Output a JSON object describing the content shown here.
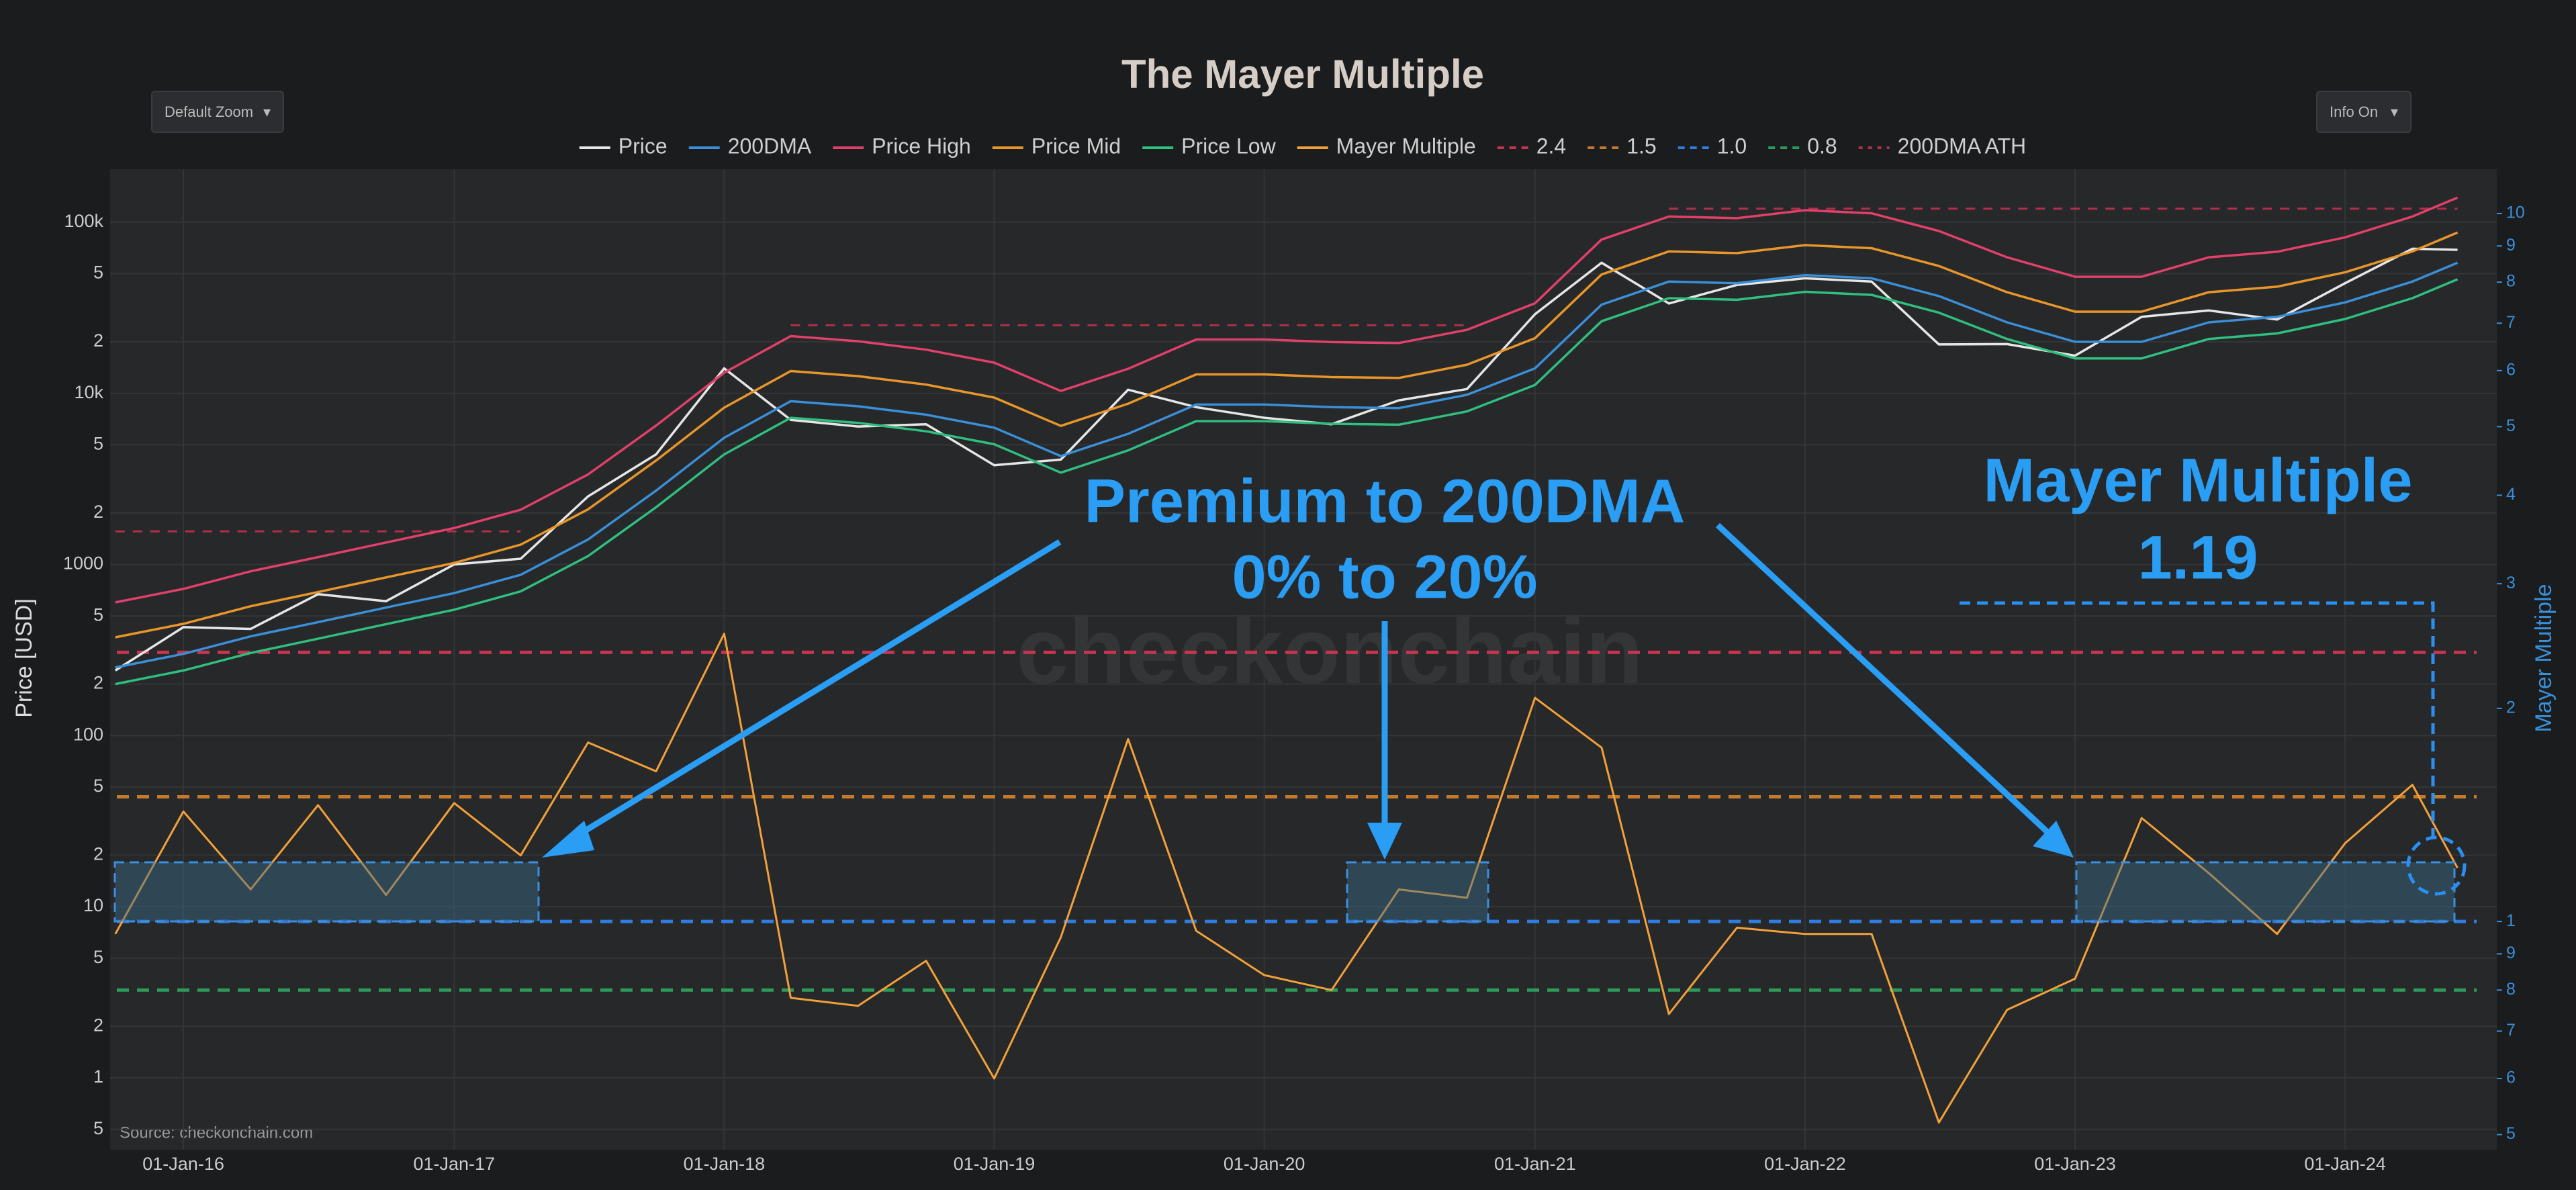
{
  "controls": {
    "zoom": "Default Zoom",
    "info": "Info On"
  },
  "chart_data": {
    "type": "line",
    "title": "The Mayer Multiple",
    "y_label": "Price [USD]",
    "y2_label": "Mayer Multiple",
    "source": "Source: checkonchain.com",
    "watermark": "checkonchain",
    "annotations": [
      "Premium to 200DMA",
      "0% to 20%",
      "Mayer Multiple",
      "1.19"
    ],
    "log_y": true,
    "log_y2": true,
    "grid": true,
    "xlim": [
      "2015-09-24",
      "2024-07-24"
    ],
    "xticks": [
      {
        "value": "2016-01-01",
        "label": "01-Jan-16"
      },
      {
        "value": "2017-01-01",
        "label": "01-Jan-17"
      },
      {
        "value": "2018-01-01",
        "label": "01-Jan-18"
      },
      {
        "value": "2019-01-01",
        "label": "01-Jan-19"
      },
      {
        "value": "2020-01-01",
        "label": "01-Jan-20"
      },
      {
        "value": "2021-01-01",
        "label": "01-Jan-21"
      },
      {
        "value": "2022-01-01",
        "label": "01-Jan-22"
      },
      {
        "value": "2023-01-01",
        "label": "01-Jan-23"
      },
      {
        "value": "2024-01-01",
        "label": "01-Jan-24"
      }
    ],
    "ylim": [
      0.38,
      204000
    ],
    "yticks": [
      {
        "value": 0.5,
        "label": "5"
      },
      1,
      2,
      5,
      10,
      {
        "value": 20,
        "label": "2"
      },
      {
        "value": 50,
        "label": "5"
      },
      100,
      {
        "value": 200,
        "label": "2"
      },
      {
        "value": 500,
        "label": "5"
      },
      1000,
      {
        "value": 2000,
        "label": "2"
      },
      {
        "value": 5000,
        "label": "5"
      },
      {
        "value": 10000,
        "label": "10k"
      },
      {
        "value": 20000,
        "label": "2"
      },
      {
        "value": 50000,
        "label": "5"
      },
      {
        "value": 100000,
        "label": "100k"
      }
    ],
    "y2lim": [
      0.476,
      11.55
    ],
    "y2ticks": [
      {
        "value": 0.5,
        "label": "5"
      },
      {
        "value": 0.6,
        "label": "6"
      },
      {
        "value": 0.7,
        "label": "7"
      },
      {
        "value": 0.8,
        "label": "8"
      },
      {
        "value": 0.9,
        "label": "9"
      },
      1,
      2,
      3,
      4,
      5,
      6,
      7,
      8,
      9,
      10
    ],
    "x": [
      "2015-10-01",
      "2016-01-01",
      "2016-04-01",
      "2016-07-01",
      "2016-10-01",
      "2017-01-01",
      "2017-04-01",
      "2017-07-01",
      "2017-10-01",
      "2018-01-01",
      "2018-04-01",
      "2018-07-01",
      "2018-10-01",
      "2019-01-01",
      "2019-04-01",
      "2019-07-01",
      "2019-10-01",
      "2020-01-01",
      "2020-04-01",
      "2020-07-01",
      "2020-10-01",
      "2021-01-01",
      "2021-04-01",
      "2021-07-01",
      "2021-10-01",
      "2022-01-01",
      "2022-04-01",
      "2022-07-01",
      "2022-10-01",
      "2023-01-01",
      "2023-04-01",
      "2023-07-01",
      "2023-10-01",
      "2024-01-01",
      "2024-04-01",
      "2024-06-01"
    ],
    "series": [
      {
        "name": "Price",
        "color": "#e6e6e6",
        "values": [
          240,
          430,
          420,
          670,
          610,
          1000,
          1080,
          2500,
          4400,
          14000,
          7000,
          6400,
          6600,
          3800,
          4100,
          10500,
          8300,
          7200,
          6600,
          9100,
          10600,
          29000,
          58000,
          33500,
          43000,
          47000,
          45000,
          19300,
          19400,
          16600,
          28000,
          30500,
          27000,
          44000,
          70000,
          69000
        ]
      },
      {
        "name": "200DMA",
        "color": "#3a8fd8",
        "values": [
          250,
          300,
          380,
          460,
          560,
          680,
          870,
          1400,
          2700,
          5500,
          9000,
          8400,
          7500,
          6300,
          4300,
          5800,
          8600,
          8600,
          8300,
          8200,
          9800,
          14000,
          33000,
          45000,
          44000,
          49000,
          47000,
          37000,
          26000,
          20000,
          20000,
          26000,
          28000,
          34000,
          45000,
          58000
        ]
      },
      {
        "name": "Price High",
        "color": "#e0406a",
        "values": [
          600,
          720,
          912,
          1104,
          1344,
          1632,
          2088,
          3360,
          6480,
          13200,
          21600,
          20160,
          18000,
          15120,
          10320,
          13920,
          20640,
          20640,
          19920,
          19680,
          23520,
          33600,
          79200,
          108000,
          105600,
          117600,
          112800,
          88800,
          62400,
          48000,
          48000,
          62400,
          67200,
          81600,
          108000,
          139200
        ]
      },
      {
        "name": "Price Mid",
        "color": "#e8962a",
        "values": [
          375,
          450,
          570,
          690,
          840,
          1020,
          1305,
          2100,
          4050,
          8250,
          13500,
          12600,
          11250,
          9450,
          6450,
          8700,
          12900,
          12900,
          12450,
          12300,
          14700,
          21000,
          49500,
          67500,
          66000,
          73500,
          70500,
          55500,
          39000,
          30000,
          30000,
          39000,
          42000,
          51000,
          67500,
          87000
        ]
      },
      {
        "name": "Price Low",
        "color": "#2fbf80",
        "values": [
          200,
          240,
          304,
          368,
          448,
          544,
          696,
          1120,
          2160,
          4400,
          7200,
          6720,
          6000,
          5040,
          3440,
          4640,
          6880,
          6880,
          6640,
          6560,
          7840,
          11200,
          26400,
          36000,
          35200,
          39200,
          37600,
          29600,
          20800,
          16000,
          16000,
          20800,
          22400,
          27200,
          36000,
          46400
        ]
      },
      {
        "name": "Mayer Multiple",
        "color": "#f2a03a",
        "axis": "y2",
        "values": [
          0.96,
          1.43,
          1.11,
          1.46,
          1.09,
          1.47,
          1.24,
          1.79,
          1.63,
          2.55,
          0.78,
          0.76,
          0.88,
          0.6,
          0.95,
          1.81,
          0.97,
          0.84,
          0.8,
          1.11,
          1.08,
          2.07,
          1.76,
          0.74,
          0.98,
          0.96,
          0.96,
          0.52,
          0.75,
          0.83,
          1.4,
          1.17,
          0.96,
          1.29,
          1.56,
          1.19
        ]
      }
    ],
    "hlines": [
      {
        "name": "2.4",
        "value": 2.4,
        "color": "#c8344f",
        "axis": "y2"
      },
      {
        "name": "1.5",
        "value": 1.5,
        "color": "#c47a2c",
        "axis": "y2"
      },
      {
        "name": "1.0",
        "value": 1,
        "color": "#2f7de0",
        "axis": "y2"
      },
      {
        "name": "0.8",
        "value": 0.8,
        "color": "#2e9a5a",
        "axis": "y2"
      }
    ],
    "reference_series": {
      "name": "200DMA ATH",
      "color": "#b03048",
      "values": [
        1560,
        1560,
        1560,
        1560,
        1560,
        1560,
        1560,
        null,
        null,
        null,
        25000,
        25000,
        25000,
        25000,
        25000,
        25000,
        25000,
        25000,
        25000,
        25000,
        25000,
        null,
        null,
        120000,
        120000,
        120000,
        120000,
        120000,
        120000,
        120000,
        120000,
        120000,
        120000,
        120000,
        120000,
        120000
      ]
    }
  }
}
